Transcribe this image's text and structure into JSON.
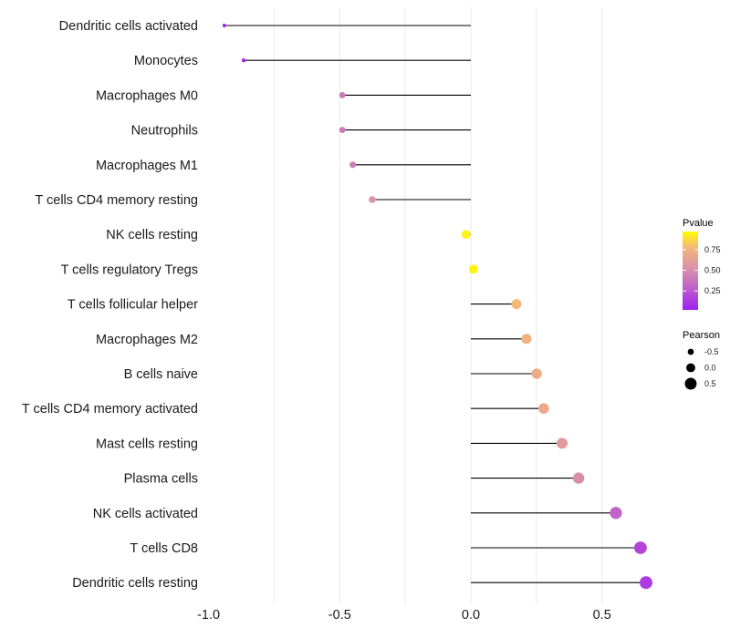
{
  "chart_data": {
    "type": "lollipop",
    "title": "",
    "xlabel": "",
    "ylabel": "",
    "xlim": [
      -1.0,
      0.75
    ],
    "xticks": [
      -1.0,
      -0.5,
      0.0,
      0.5
    ],
    "xtick_labels": [
      "-1.0",
      "-0.5",
      "0.0",
      "0.5"
    ],
    "grid": true,
    "categories": [
      "Dendritic cells activated",
      "Monocytes",
      "Macrophages M0",
      "Neutrophils",
      "Macrophages M1",
      "T cells CD4 memory resting",
      "NK cells resting",
      "T cells regulatory  Tregs",
      "T cells follicular helper",
      "Macrophages M2",
      "B cells naive",
      "T cells CD4 memory activated",
      "Mast cells resting",
      "Plasma cells",
      "NK cells activated",
      "T cells CD8",
      "Dendritic cells resting"
    ],
    "pearson": [
      -0.94,
      -0.866,
      -0.49,
      -0.49,
      -0.45,
      -0.376,
      -0.018,
      0.01,
      0.174,
      0.212,
      0.251,
      0.278,
      0.348,
      0.411,
      0.553,
      0.647,
      0.668
    ],
    "pvalue": [
      0.02,
      0.05,
      0.4,
      0.4,
      0.42,
      0.55,
      0.97,
      0.97,
      0.8,
      0.75,
      0.72,
      0.7,
      0.6,
      0.52,
      0.3,
      0.17,
      0.12
    ],
    "legend": {
      "color_title": "Pvalue",
      "color_ticks": [
        0.25,
        0.5,
        0.75
      ],
      "color_tick_labels": [
        "0.25",
        "0.50",
        "0.75"
      ],
      "color_low": "#a020f0",
      "color_mid": "#d080b0",
      "color_high": "#ffff00",
      "size_title": "Pearson",
      "size_values": [
        -0.5,
        0.0,
        0.5
      ],
      "size_labels": [
        "-0.5",
        "0.0",
        "0.5"
      ],
      "placement": "right"
    }
  }
}
